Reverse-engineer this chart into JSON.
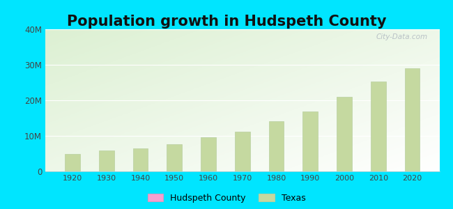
{
  "title": "Population growth in Hudspeth County",
  "years": [
    1920,
    1930,
    1940,
    1950,
    1960,
    1970,
    1980,
    1990,
    2000,
    2010,
    2020
  ],
  "texas_population": [
    4900000,
    5900000,
    6500000,
    7700000,
    9600000,
    11200000,
    14200000,
    16900000,
    20900000,
    25200000,
    29000000
  ],
  "bar_color_texas": "#c5d9a0",
  "bar_edge_color": "#b8cfa0",
  "outer_bg": "#00e5ff",
  "ylim": [
    0,
    40000000
  ],
  "yticks": [
    0,
    10000000,
    20000000,
    30000000,
    40000000
  ],
  "ytick_labels": [
    "0",
    "10M",
    "20M",
    "30M",
    "40M"
  ],
  "title_fontsize": 15,
  "watermark": "City-Data.com",
  "legend_hudspeth_color": "#f5a0d0",
  "legend_texas_color": "#c5d9a0"
}
